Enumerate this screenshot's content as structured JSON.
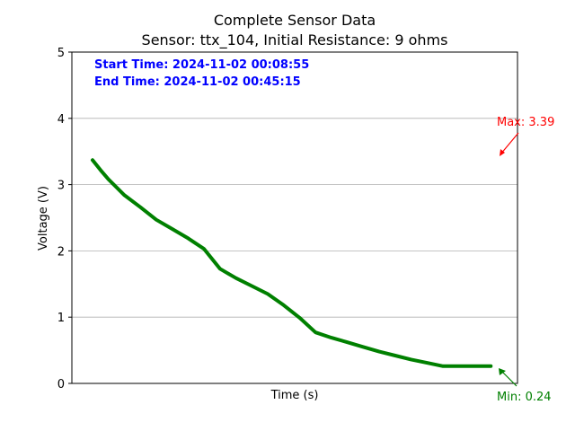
{
  "chart_data": {
    "type": "line",
    "title": "Complete Sensor Data",
    "subtitle": "Sensor: ttx_104, Initial Resistance: 9 ohms",
    "xlabel": "Time (s)",
    "ylabel": "Voltage (V)",
    "ylim": [
      0,
      5
    ],
    "yticks": [
      "0",
      "1",
      "2",
      "3",
      "4",
      "5"
    ],
    "grid": "horizontal",
    "info_text": {
      "start_time": "Start Time: 2024-11-02 00:08:55",
      "end_time": "End Time: 2024-11-02 00:45:15",
      "color": "#0000ff"
    },
    "annotations": {
      "max_label": "Max: 3.39",
      "max_value": 3.39,
      "max_color": "#ff0000",
      "min_label": "Min: 0.24",
      "min_value": 0.24,
      "min_color": "#008000"
    },
    "series": [
      {
        "color": "#008000",
        "x": [
          0,
          0.02,
          0.04,
          0.08,
          0.12,
          0.16,
          0.2,
          0.24,
          0.28,
          0.32,
          0.36,
          0.4,
          0.44,
          0.48,
          0.52,
          0.56,
          0.6,
          0.64,
          0.68,
          0.72,
          0.76,
          0.8,
          0.84,
          0.88,
          0.92,
          0.96,
          1.0
        ],
        "y": [
          3.37,
          3.22,
          3.08,
          2.84,
          2.66,
          2.47,
          2.33,
          2.19,
          2.03,
          1.73,
          1.59,
          1.47,
          1.35,
          1.18,
          0.99,
          0.77,
          0.69,
          0.62,
          0.55,
          0.48,
          0.42,
          0.36,
          0.31,
          0.26,
          0.26,
          0.26,
          0.26
        ]
      }
    ]
  }
}
